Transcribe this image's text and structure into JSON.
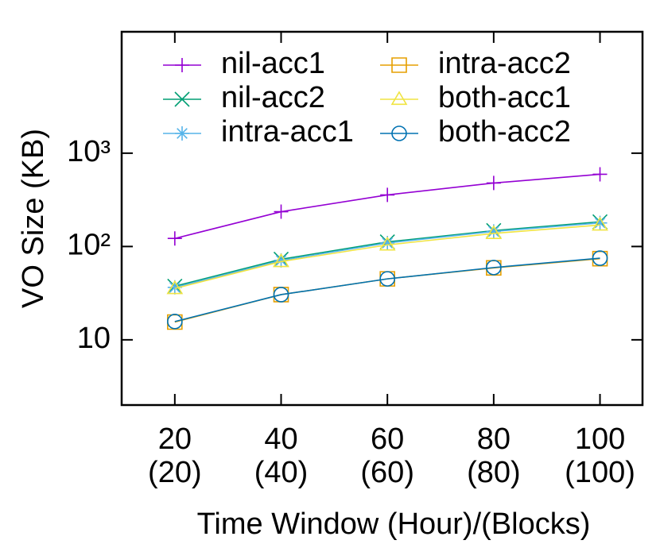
{
  "chart_data": {
    "type": "line",
    "x_label": "Time Window (Hour)/(Blocks)",
    "y_label": "VO Size (KB)",
    "x": [
      20,
      40,
      60,
      80,
      100
    ],
    "xlim": [
      10,
      108
    ],
    "xticks": [
      {
        "value": 20,
        "label": [
          "20",
          "(20)"
        ]
      },
      {
        "value": 40,
        "label": [
          "40",
          "(40)"
        ]
      },
      {
        "value": 60,
        "label": [
          "60",
          "(60)"
        ]
      },
      {
        "value": 80,
        "label": [
          "80",
          "(80)"
        ]
      },
      {
        "value": 100,
        "label": [
          "100",
          "(100)"
        ]
      }
    ],
    "ylim": [
      2,
      20000
    ],
    "yticks": [
      10,
      {
        "value": 100,
        "label": "10²"
      },
      {
        "value": 1000,
        "label": "10³"
      }
    ],
    "y_scale": "log",
    "series": [
      {
        "name": "nil-acc1",
        "color": "#9400d3",
        "marker": "plus",
        "values": [
          122,
          236,
          357,
          479,
          594
        ]
      },
      {
        "name": "nil-acc2",
        "color": "#009e73",
        "marker": "cross",
        "values": [
          37.5,
          73,
          112,
          148,
          184
        ]
      },
      {
        "name": "intra-acc1",
        "color": "#56b4e9",
        "marker": "star",
        "values": [
          36.5,
          71,
          109,
          145,
          179
        ]
      },
      {
        "name": "intra-acc2",
        "color": "#e69f00",
        "marker": "square",
        "values": [
          15.5,
          30.5,
          45,
          59,
          74
        ]
      },
      {
        "name": "both-acc1",
        "color": "#f0e442",
        "marker": "triangle",
        "values": [
          35.5,
          69,
          104,
          138,
          170
        ]
      },
      {
        "name": "both-acc2",
        "color": "#0072b2",
        "marker": "circle",
        "values": [
          15.7,
          30.5,
          45,
          59.5,
          75
        ]
      }
    ]
  }
}
